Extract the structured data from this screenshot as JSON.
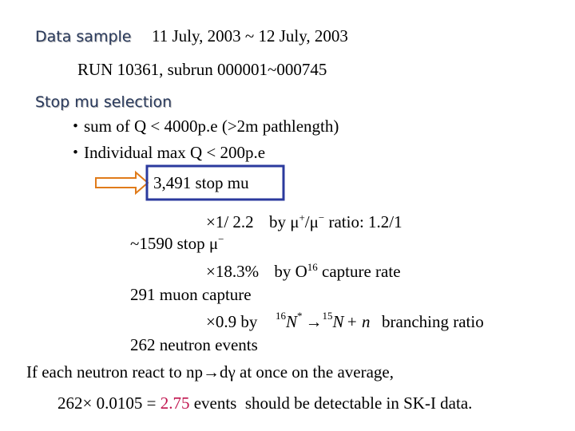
{
  "header": {
    "label": "Data sample",
    "dates": "11 July, 2003 ~ 12 July, 2003",
    "run": "RUN 10361, subrun 000001~000745"
  },
  "selection": {
    "title": "Stop mu selection",
    "bullets": [
      "・sum of Q < 4000p.e (>2m pathlength)",
      "・Individual max Q < 200p.e"
    ],
    "result": "3,491 stop mu"
  },
  "steps": {
    "ratio": {
      "factor": "×1/ 2.2",
      "by": "by μ",
      "sup1": "+",
      "mid": "/μ",
      "sup2": "−",
      "rest": " ratio: 1.2/1"
    },
    "stop_minus": {
      "text": "~1590  stop μ",
      "sup": "−"
    },
    "capture": {
      "factor": "×18.3%",
      "by": "by O",
      "sup": "16",
      "rest": " capture rate"
    },
    "muon_capture": "291 muon capture",
    "branching": {
      "factor": "×0.9 by",
      "formula": {
        "a_mass": "16",
        "a": "N",
        "a_star": "*",
        "arrow": "→",
        "b_mass": "15",
        "b": "N",
        "plus": "+ n"
      },
      "rest": "branching ratio"
    },
    "neutrons": "262 neutron events"
  },
  "conclusion": {
    "line1": "If each neutron react to np→dγ at once on the average,",
    "calc": "262× 0.0105 = ",
    "result": "2.75",
    "rest": " events  should be detectable in SK-I data."
  }
}
